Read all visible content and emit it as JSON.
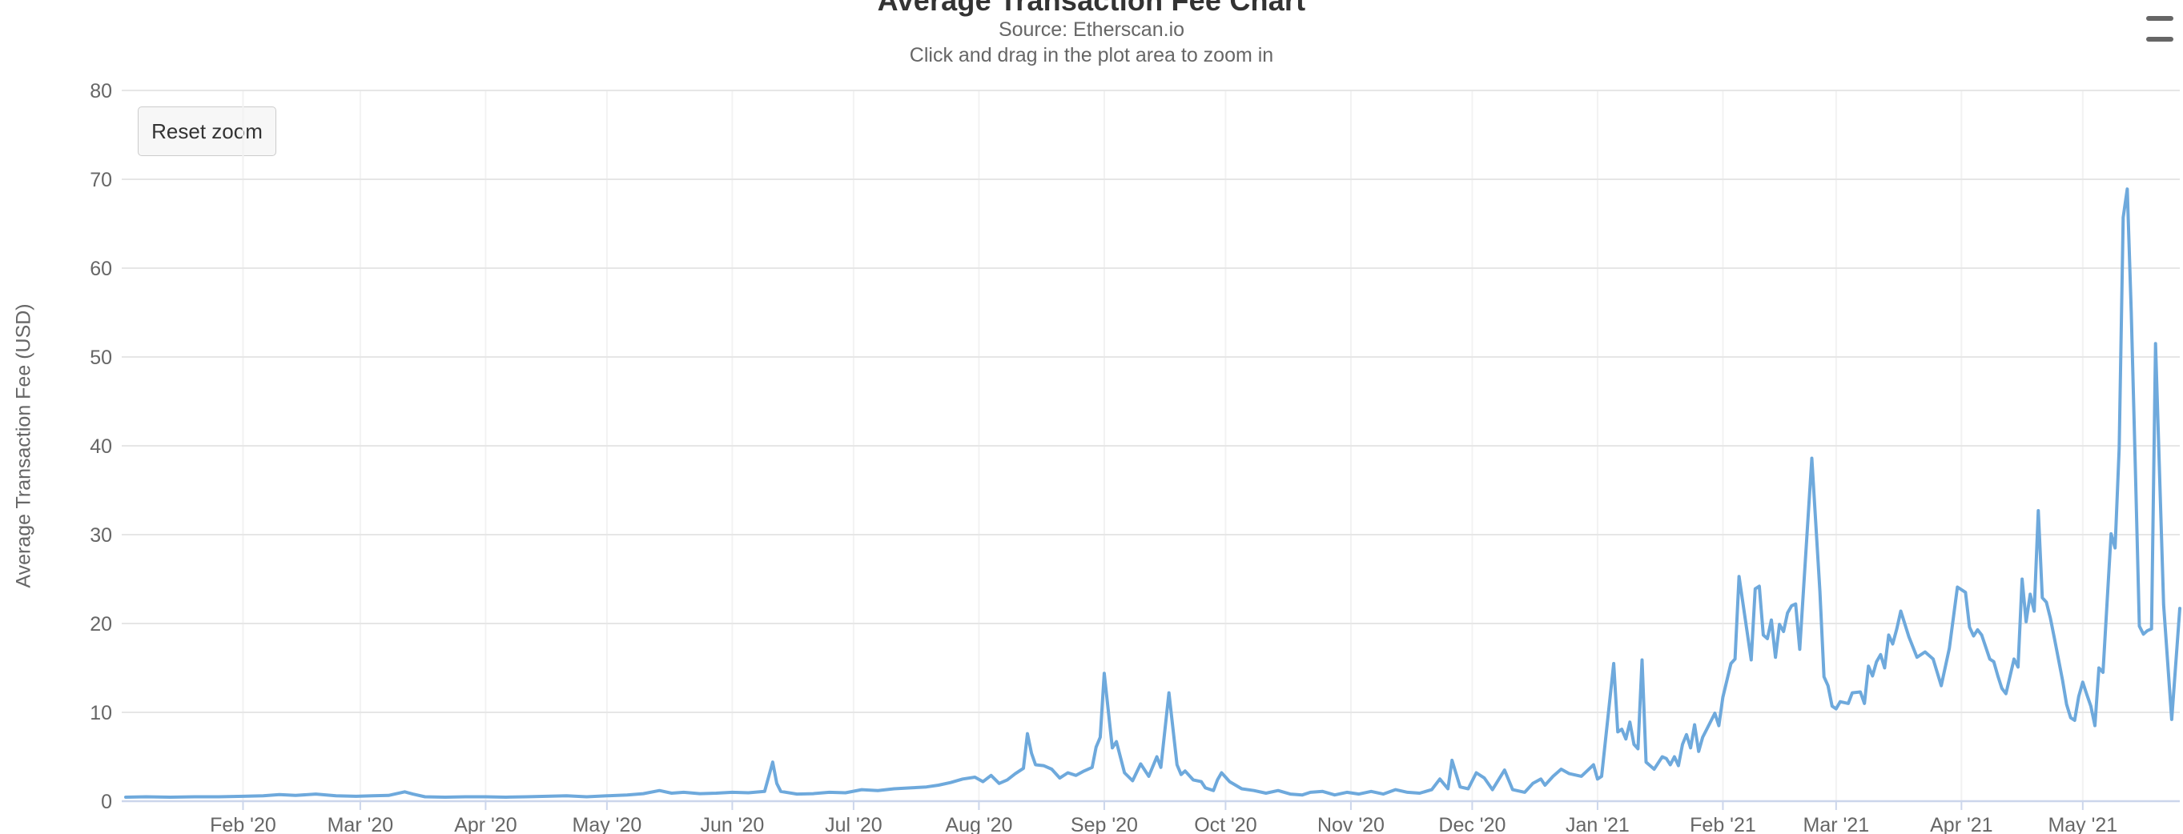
{
  "controls": {
    "reset_zoom_label": "Reset zoom",
    "context_menu_icon": "hamburger-menu-icon"
  },
  "colors": {
    "series_line": "#6ea9dc",
    "grid_line": "#e6e6e6",
    "month_grid_line": "#f2f2f2",
    "axis_line": "#ccd6eb",
    "label_text": "#666666",
    "title_text": "#333333",
    "button_bg": "#f7f7f7",
    "button_border": "#cccccc",
    "menu_icon": "#666666",
    "background": "#ffffff"
  },
  "chart_data": {
    "type": "line",
    "title": "Average Transaction Fee Chart",
    "subtitle": "Source: Etherscan.io",
    "hint": "Click and drag in the plot area to zoom in",
    "xlabel": "",
    "ylabel": "Average Transaction Fee (USD)",
    "ylim": [
      0,
      80
    ],
    "yticks": [
      0,
      10,
      20,
      30,
      40,
      50,
      60,
      70,
      80
    ],
    "x_range": [
      "2020-01-02",
      "2021-05-25"
    ],
    "grid": "horizontal",
    "legend": "none",
    "xticks": [
      {
        "label": "Feb '20",
        "date": "2020-02-01"
      },
      {
        "label": "Mar '20",
        "date": "2020-03-01"
      },
      {
        "label": "Apr '20",
        "date": "2020-04-01"
      },
      {
        "label": "May '20",
        "date": "2020-05-01"
      },
      {
        "label": "Jun '20",
        "date": "2020-06-01"
      },
      {
        "label": "Jul '20",
        "date": "2020-07-01"
      },
      {
        "label": "Aug '20",
        "date": "2020-08-01"
      },
      {
        "label": "Sep '20",
        "date": "2020-09-01"
      },
      {
        "label": "Oct '20",
        "date": "2020-10-01"
      },
      {
        "label": "Nov '20",
        "date": "2020-11-01"
      },
      {
        "label": "Dec '20",
        "date": "2020-12-01"
      },
      {
        "label": "Jan '21",
        "date": "2021-01-01"
      },
      {
        "label": "Feb '21",
        "date": "2021-02-01"
      },
      {
        "label": "Mar '21",
        "date": "2021-03-01"
      },
      {
        "label": "Apr '21",
        "date": "2021-04-01"
      },
      {
        "label": "May '21",
        "date": "2021-05-01"
      }
    ],
    "series": [
      {
        "name": "Average Transaction Fee (USD)",
        "color": "#6ea9dc",
        "points": [
          [
            "2020-01-03",
            0.45
          ],
          [
            "2020-01-08",
            0.5
          ],
          [
            "2020-01-14",
            0.45
          ],
          [
            "2020-01-20",
            0.5
          ],
          [
            "2020-01-26",
            0.5
          ],
          [
            "2020-02-01",
            0.55
          ],
          [
            "2020-02-06",
            0.6
          ],
          [
            "2020-02-10",
            0.75
          ],
          [
            "2020-02-14",
            0.65
          ],
          [
            "2020-02-19",
            0.8
          ],
          [
            "2020-02-24",
            0.6
          ],
          [
            "2020-02-29",
            0.55
          ],
          [
            "2020-03-04",
            0.6
          ],
          [
            "2020-03-08",
            0.65
          ],
          [
            "2020-03-12",
            1.05
          ],
          [
            "2020-03-14",
            0.8
          ],
          [
            "2020-03-17",
            0.5
          ],
          [
            "2020-03-22",
            0.45
          ],
          [
            "2020-03-27",
            0.5
          ],
          [
            "2020-04-01",
            0.5
          ],
          [
            "2020-04-06",
            0.45
          ],
          [
            "2020-04-11",
            0.5
          ],
          [
            "2020-04-16",
            0.55
          ],
          [
            "2020-04-21",
            0.6
          ],
          [
            "2020-04-26",
            0.5
          ],
          [
            "2020-05-01",
            0.6
          ],
          [
            "2020-05-06",
            0.7
          ],
          [
            "2020-05-10",
            0.85
          ],
          [
            "2020-05-14",
            1.2
          ],
          [
            "2020-05-17",
            0.9
          ],
          [
            "2020-05-20",
            1.0
          ],
          [
            "2020-05-24",
            0.85
          ],
          [
            "2020-05-28",
            0.9
          ],
          [
            "2020-06-01",
            1.0
          ],
          [
            "2020-06-05",
            0.95
          ],
          [
            "2020-06-09",
            1.1
          ],
          [
            "2020-06-11",
            4.4
          ],
          [
            "2020-06-12",
            2.0
          ],
          [
            "2020-06-13",
            1.1
          ],
          [
            "2020-06-17",
            0.8
          ],
          [
            "2020-06-21",
            0.85
          ],
          [
            "2020-06-25",
            1.0
          ],
          [
            "2020-06-29",
            0.95
          ],
          [
            "2020-07-03",
            1.3
          ],
          [
            "2020-07-07",
            1.2
          ],
          [
            "2020-07-11",
            1.4
          ],
          [
            "2020-07-15",
            1.5
          ],
          [
            "2020-07-19",
            1.6
          ],
          [
            "2020-07-22",
            1.8
          ],
          [
            "2020-07-25",
            2.1
          ],
          [
            "2020-07-28",
            2.5
          ],
          [
            "2020-07-31",
            2.7
          ],
          [
            "2020-08-02",
            2.2
          ],
          [
            "2020-08-04",
            2.9
          ],
          [
            "2020-08-06",
            2.0
          ],
          [
            "2020-08-08",
            2.4
          ],
          [
            "2020-08-10",
            3.1
          ],
          [
            "2020-08-12",
            3.7
          ],
          [
            "2020-08-13",
            7.6
          ],
          [
            "2020-08-14",
            5.4
          ],
          [
            "2020-08-15",
            4.1
          ],
          [
            "2020-08-17",
            4.0
          ],
          [
            "2020-08-19",
            3.6
          ],
          [
            "2020-08-21",
            2.6
          ],
          [
            "2020-08-23",
            3.2
          ],
          [
            "2020-08-25",
            2.9
          ],
          [
            "2020-08-27",
            3.4
          ],
          [
            "2020-08-29",
            3.8
          ],
          [
            "2020-08-30",
            6.1
          ],
          [
            "2020-08-31",
            7.2
          ],
          [
            "2020-09-01",
            14.4
          ],
          [
            "2020-09-03",
            6.0
          ],
          [
            "2020-09-04",
            6.7
          ],
          [
            "2020-09-06",
            3.2
          ],
          [
            "2020-09-08",
            2.3
          ],
          [
            "2020-09-10",
            4.2
          ],
          [
            "2020-09-12",
            2.8
          ],
          [
            "2020-09-14",
            5.0
          ],
          [
            "2020-09-15",
            3.8
          ],
          [
            "2020-09-17",
            12.2
          ],
          [
            "2020-09-19",
            4.1
          ],
          [
            "2020-09-20",
            3.0
          ],
          [
            "2020-09-21",
            3.4
          ],
          [
            "2020-09-23",
            2.4
          ],
          [
            "2020-09-25",
            2.2
          ],
          [
            "2020-09-26",
            1.5
          ],
          [
            "2020-09-28",
            1.2
          ],
          [
            "2020-09-29",
            2.4
          ],
          [
            "2020-09-30",
            3.2
          ],
          [
            "2020-10-02",
            2.2
          ],
          [
            "2020-10-05",
            1.4
          ],
          [
            "2020-10-08",
            1.2
          ],
          [
            "2020-10-11",
            0.9
          ],
          [
            "2020-10-14",
            1.2
          ],
          [
            "2020-10-17",
            0.8
          ],
          [
            "2020-10-20",
            0.7
          ],
          [
            "2020-10-22",
            1.0
          ],
          [
            "2020-10-25",
            1.1
          ],
          [
            "2020-10-28",
            0.7
          ],
          [
            "2020-10-31",
            1.0
          ],
          [
            "2020-11-03",
            0.8
          ],
          [
            "2020-11-06",
            1.1
          ],
          [
            "2020-11-09",
            0.8
          ],
          [
            "2020-11-12",
            1.3
          ],
          [
            "2020-11-15",
            1.0
          ],
          [
            "2020-11-18",
            0.9
          ],
          [
            "2020-11-21",
            1.3
          ],
          [
            "2020-11-23",
            2.5
          ],
          [
            "2020-11-25",
            1.4
          ],
          [
            "2020-11-26",
            4.6
          ],
          [
            "2020-11-28",
            1.6
          ],
          [
            "2020-11-30",
            1.4
          ],
          [
            "2020-12-02",
            3.2
          ],
          [
            "2020-12-04",
            2.6
          ],
          [
            "2020-12-06",
            1.3
          ],
          [
            "2020-12-09",
            3.5
          ],
          [
            "2020-12-11",
            1.3
          ],
          [
            "2020-12-14",
            1.0
          ],
          [
            "2020-12-16",
            2.0
          ],
          [
            "2020-12-18",
            2.5
          ],
          [
            "2020-12-19",
            1.8
          ],
          [
            "2020-12-21",
            2.8
          ],
          [
            "2020-12-23",
            3.6
          ],
          [
            "2020-12-25",
            3.1
          ],
          [
            "2020-12-28",
            2.8
          ],
          [
            "2020-12-31",
            4.1
          ],
          [
            "2021-01-01",
            2.5
          ],
          [
            "2021-01-02",
            2.8
          ],
          [
            "2021-01-05",
            15.5
          ],
          [
            "2021-01-06",
            7.8
          ],
          [
            "2021-01-07",
            8.1
          ],
          [
            "2021-01-08",
            7.0
          ],
          [
            "2021-01-09",
            8.9
          ],
          [
            "2021-01-10",
            6.4
          ],
          [
            "2021-01-11",
            5.9
          ],
          [
            "2021-01-12",
            15.9
          ],
          [
            "2021-01-13",
            4.4
          ],
          [
            "2021-01-14",
            4.0
          ],
          [
            "2021-01-15",
            3.6
          ],
          [
            "2021-01-17",
            5.0
          ],
          [
            "2021-01-18",
            4.8
          ],
          [
            "2021-01-19",
            4.1
          ],
          [
            "2021-01-20",
            5.0
          ],
          [
            "2021-01-21",
            4.0
          ],
          [
            "2021-01-22",
            6.4
          ],
          [
            "2021-01-23",
            7.5
          ],
          [
            "2021-01-24",
            6.0
          ],
          [
            "2021-01-25",
            8.6
          ],
          [
            "2021-01-26",
            5.6
          ],
          [
            "2021-01-27",
            7.2
          ],
          [
            "2021-01-28",
            8.1
          ],
          [
            "2021-01-30",
            9.9
          ],
          [
            "2021-01-31",
            8.5
          ],
          [
            "2021-02-01",
            11.7
          ],
          [
            "2021-02-03",
            15.5
          ],
          [
            "2021-02-04",
            16.0
          ],
          [
            "2021-02-05",
            25.3
          ],
          [
            "2021-02-08",
            15.9
          ],
          [
            "2021-02-09",
            23.9
          ],
          [
            "2021-02-10",
            24.2
          ],
          [
            "2021-02-11",
            18.7
          ],
          [
            "2021-02-12",
            18.3
          ],
          [
            "2021-02-13",
            20.4
          ],
          [
            "2021-02-14",
            16.2
          ],
          [
            "2021-02-15",
            19.9
          ],
          [
            "2021-02-16",
            19.1
          ],
          [
            "2021-02-17",
            21.2
          ],
          [
            "2021-02-18",
            22.0
          ],
          [
            "2021-02-19",
            22.2
          ],
          [
            "2021-02-20",
            17.1
          ],
          [
            "2021-02-23",
            38.6
          ],
          [
            "2021-02-25",
            23.6
          ],
          [
            "2021-02-26",
            14.0
          ],
          [
            "2021-02-27",
            13.0
          ],
          [
            "2021-02-28",
            10.7
          ],
          [
            "2021-03-01",
            10.4
          ],
          [
            "2021-03-02",
            11.2
          ],
          [
            "2021-03-04",
            11.0
          ],
          [
            "2021-03-05",
            12.2
          ],
          [
            "2021-03-07",
            12.3
          ],
          [
            "2021-03-08",
            11.0
          ],
          [
            "2021-03-09",
            15.2
          ],
          [
            "2021-03-10",
            14.1
          ],
          [
            "2021-03-11",
            15.7
          ],
          [
            "2021-03-12",
            16.5
          ],
          [
            "2021-03-13",
            15.0
          ],
          [
            "2021-03-14",
            18.7
          ],
          [
            "2021-03-15",
            17.7
          ],
          [
            "2021-03-16",
            19.4
          ],
          [
            "2021-03-17",
            21.4
          ],
          [
            "2021-03-19",
            18.5
          ],
          [
            "2021-03-21",
            16.2
          ],
          [
            "2021-03-23",
            16.8
          ],
          [
            "2021-03-25",
            16.0
          ],
          [
            "2021-03-27",
            13.0
          ],
          [
            "2021-03-29",
            17.2
          ],
          [
            "2021-03-31",
            24.1
          ],
          [
            "2021-04-02",
            23.5
          ],
          [
            "2021-04-03",
            19.6
          ],
          [
            "2021-04-04",
            18.6
          ],
          [
            "2021-04-05",
            19.3
          ],
          [
            "2021-04-06",
            18.7
          ],
          [
            "2021-04-08",
            16.0
          ],
          [
            "2021-04-09",
            15.7
          ],
          [
            "2021-04-10",
            14.1
          ],
          [
            "2021-04-11",
            12.7
          ],
          [
            "2021-04-12",
            12.1
          ],
          [
            "2021-04-14",
            16.0
          ],
          [
            "2021-04-15",
            15.1
          ],
          [
            "2021-04-16",
            25.0
          ],
          [
            "2021-04-17",
            20.2
          ],
          [
            "2021-04-18",
            23.3
          ],
          [
            "2021-04-19",
            21.4
          ],
          [
            "2021-04-20",
            32.7
          ],
          [
            "2021-04-21",
            22.9
          ],
          [
            "2021-04-22",
            22.4
          ],
          [
            "2021-04-23",
            20.6
          ],
          [
            "2021-04-24",
            18.3
          ],
          [
            "2021-04-26",
            13.6
          ],
          [
            "2021-04-27",
            10.9
          ],
          [
            "2021-04-28",
            9.4
          ],
          [
            "2021-04-29",
            9.1
          ],
          [
            "2021-04-30",
            11.8
          ],
          [
            "2021-05-01",
            13.4
          ],
          [
            "2021-05-02",
            12.0
          ],
          [
            "2021-05-03",
            10.7
          ],
          [
            "2021-05-04",
            8.5
          ],
          [
            "2021-05-05",
            15.0
          ],
          [
            "2021-05-06",
            14.5
          ],
          [
            "2021-05-08",
            30.1
          ],
          [
            "2021-05-09",
            28.5
          ],
          [
            "2021-05-10",
            39.7
          ],
          [
            "2021-05-11",
            65.7
          ],
          [
            "2021-05-12",
            68.9
          ],
          [
            "2021-05-13",
            55.0
          ],
          [
            "2021-05-14",
            37.5
          ],
          [
            "2021-05-15",
            19.7
          ],
          [
            "2021-05-16",
            18.8
          ],
          [
            "2021-05-17",
            19.2
          ],
          [
            "2021-05-18",
            19.4
          ],
          [
            "2021-05-19",
            51.5
          ],
          [
            "2021-05-21",
            22.1
          ],
          [
            "2021-05-23",
            9.2
          ],
          [
            "2021-05-25",
            21.7
          ]
        ]
      }
    ]
  }
}
